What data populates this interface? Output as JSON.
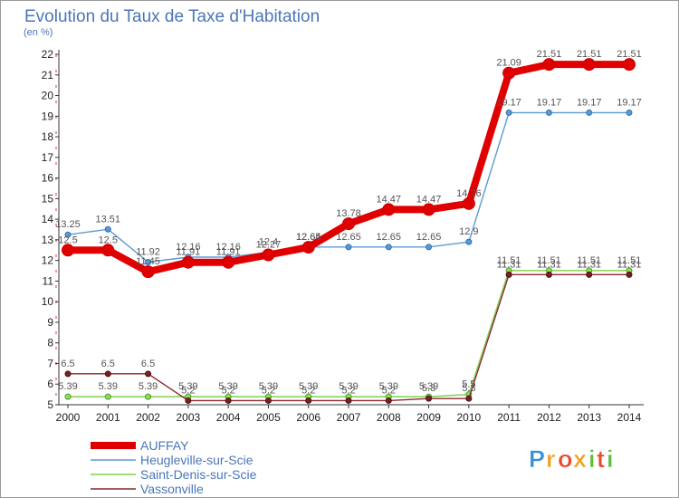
{
  "chart_data": {
    "type": "line",
    "title": "Evolution du Taux de Taxe d'Habitation",
    "subtitle": "(en %)",
    "x": [
      "2000",
      "2001",
      "2002",
      "2003",
      "2004",
      "2005",
      "2006",
      "2007",
      "2008",
      "2009",
      "2010",
      "2011",
      "2012",
      "2013",
      "2014"
    ],
    "yticks": [
      "5",
      "6",
      "7",
      "8",
      "9",
      "10",
      "11",
      "12",
      "13",
      "14",
      "15",
      "16",
      "17",
      "18",
      "19",
      "20",
      "21",
      "22"
    ],
    "ylim": [
      5,
      22
    ],
    "grid": false,
    "legend_position": "bottom-left",
    "series": [
      {
        "name": "AUFFAY",
        "color": "#e00000",
        "values": [
          12.5,
          12.5,
          11.45,
          11.91,
          11.91,
          12.27,
          12.64,
          13.78,
          14.47,
          14.47,
          14.76,
          21.09,
          21.51,
          21.51,
          21.51
        ],
        "labels": [
          "12.5",
          "12.5",
          "11.45",
          "11.91",
          "11.91",
          "12.27",
          "12.64",
          "13.78",
          "14.47",
          "14.47",
          "14.76",
          "21.09",
          "21.51",
          "21.51",
          "21.51"
        ]
      },
      {
        "name": "Heugleville-sur-Scie",
        "color": "#5b9bd5",
        "values": [
          13.25,
          13.51,
          11.92,
          12.16,
          12.16,
          12.4,
          12.65,
          12.65,
          12.65,
          12.65,
          12.9,
          19.17,
          19.17,
          19.17,
          19.17
        ],
        "labels": [
          "13.25",
          "13.51",
          "11.92",
          "12.16",
          "12.16",
          "12.4",
          "12.65",
          "12.65",
          "12.65",
          "12.65",
          "12.9",
          "19.17",
          "19.17",
          "19.17",
          "19.17"
        ]
      },
      {
        "name": "Saint-Denis-sur-Scie",
        "color": "#7fd04f",
        "values": [
          5.39,
          5.39,
          5.39,
          5.39,
          5.39,
          5.39,
          5.39,
          5.39,
          5.39,
          5.39,
          5.5,
          11.51,
          11.51,
          11.51,
          11.51
        ],
        "labels": [
          "5.39",
          "5.39",
          "5.39",
          "5.39",
          "5.39",
          "5.39",
          "5.39",
          "5.39",
          "5.39",
          "5.39",
          "5.5",
          "11.51",
          "11.51",
          "11.51",
          "11.51"
        ]
      },
      {
        "name": "Vassonville",
        "color": "#8a2a2a",
        "values": [
          6.5,
          6.5,
          6.5,
          5.2,
          5.2,
          5.2,
          5.2,
          5.2,
          5.2,
          5.3,
          5.3,
          11.31,
          11.31,
          11.31,
          11.31
        ],
        "labels": [
          "6.5",
          "6.5",
          "6.5",
          "5.2",
          "5.2",
          "5.2",
          "5.2",
          "5.2",
          "5.2",
          "5.3",
          "5.3",
          "11.31",
          "11.31",
          "11.31",
          "11.31"
        ]
      }
    ]
  },
  "logo": {
    "letters": [
      "P",
      "r",
      "o",
      "x",
      "i",
      "t",
      "i"
    ],
    "colors": [
      "#3a8fd6",
      "#f0a020",
      "#e84a2a",
      "#f0a020",
      "#5bbf3a",
      "#e84a2a",
      "#5bbf3a"
    ]
  }
}
